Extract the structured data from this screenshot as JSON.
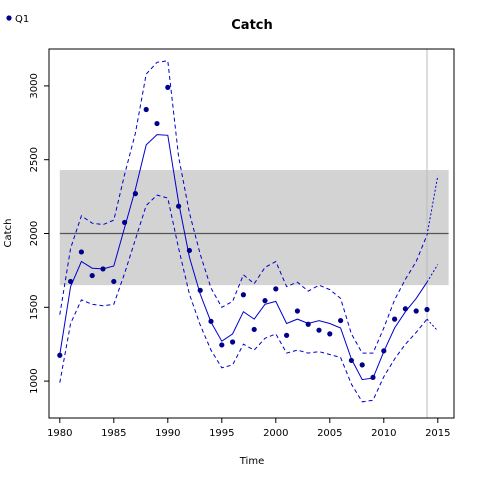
{
  "chart_data": {
    "type": "line",
    "title": "Catch",
    "xlabel": "Time",
    "ylabel": "Catch",
    "xlim": [
      1979,
      2016.5
    ],
    "ylim": [
      750,
      3250
    ],
    "xticks": [
      1980,
      1985,
      1990,
      1995,
      2000,
      2005,
      2010,
      2015
    ],
    "yticks": [
      1000,
      1500,
      2000,
      2500,
      3000
    ],
    "reference_band": {
      "y_min": 1650,
      "y_max": 2430,
      "x_min": 1980,
      "x_max": 2016,
      "color": "#d3d3d3"
    },
    "reference_line": {
      "y": 2000,
      "x_min": 1980,
      "x_max": 2016,
      "color": "#555555"
    },
    "vertical_line": {
      "x": 2014,
      "color": "#bbbbbb"
    },
    "legend": {
      "position": "top-left",
      "entries": [
        {
          "label": "Q1",
          "color": "#00008b"
        }
      ]
    },
    "series": [
      {
        "name": "Q1",
        "kind": "points",
        "color": "#00008b",
        "x": [
          1980,
          1981,
          1982,
          1983,
          1984,
          1985,
          1986,
          1987,
          1988,
          1989,
          1990,
          1991,
          1992,
          1993,
          1994,
          1995,
          1996,
          1997,
          1998,
          1999,
          2000,
          2001,
          2002,
          2003,
          2004,
          2005,
          2006,
          2007,
          2008,
          2009,
          2010,
          2011,
          2012,
          2013,
          2014
        ],
        "y": [
          1175,
          1675,
          1875,
          1715,
          1760,
          1675,
          2075,
          2270,
          2840,
          2745,
          2990,
          2185,
          1885,
          1615,
          1405,
          1245,
          1265,
          1585,
          1350,
          1545,
          1625,
          1310,
          1475,
          1385,
          1345,
          1320,
          1410,
          1140,
          1110,
          1025,
          1205,
          1420,
          1490,
          1475,
          1485
        ]
      },
      {
        "name": "",
        "kind": "fit",
        "color": "#0000cd",
        "x": [
          1980,
          1981,
          1982,
          1983,
          1984,
          1985,
          1986,
          1987,
          1988,
          1989,
          1990,
          1991,
          1992,
          1993,
          1994,
          1995,
          1996,
          1997,
          1998,
          1999,
          2000,
          2001,
          2002,
          2003,
          2004,
          2005,
          2006,
          2007,
          2008,
          2009,
          2010,
          2011,
          2012,
          2013,
          2014
        ],
        "y": [
          1180,
          1640,
          1810,
          1765,
          1760,
          1780,
          2040,
          2300,
          2600,
          2670,
          2665,
          2210,
          1840,
          1590,
          1400,
          1270,
          1320,
          1470,
          1420,
          1520,
          1540,
          1390,
          1420,
          1390,
          1410,
          1390,
          1360,
          1150,
          1010,
          1020,
          1200,
          1360,
          1470,
          1560,
          1670
        ]
      },
      {
        "name": "",
        "kind": "upper-bound",
        "color": "#0000cd",
        "x": [
          1980,
          1981,
          1982,
          1983,
          1984,
          1985,
          1986,
          1987,
          1988,
          1989,
          1990,
          1991,
          1992,
          1993,
          1994,
          1995,
          1996,
          1997,
          1998,
          1999,
          2000,
          2001,
          2002,
          2003,
          2004,
          2005,
          2006,
          2007,
          2008,
          2009,
          2010,
          2011,
          2012,
          2013,
          2014
        ],
        "y": [
          1450,
          1900,
          2120,
          2070,
          2060,
          2090,
          2400,
          2680,
          3080,
          3160,
          3170,
          2520,
          2140,
          1860,
          1630,
          1500,
          1540,
          1720,
          1660,
          1770,
          1810,
          1640,
          1670,
          1610,
          1650,
          1620,
          1560,
          1320,
          1190,
          1190,
          1360,
          1550,
          1690,
          1810,
          1990
        ]
      },
      {
        "name": "",
        "kind": "lower-bound",
        "color": "#0000cd",
        "x": [
          1980,
          1981,
          1982,
          1983,
          1984,
          1985,
          1986,
          1987,
          1988,
          1989,
          1990,
          1991,
          1992,
          1993,
          1994,
          1995,
          1996,
          1997,
          1998,
          1999,
          2000,
          2001,
          2002,
          2003,
          2004,
          2005,
          2006,
          2007,
          2008,
          2009,
          2010,
          2011,
          2012,
          2013,
          2014
        ],
        "y": [
          990,
          1390,
          1550,
          1520,
          1510,
          1520,
          1730,
          1960,
          2190,
          2260,
          2240,
          1900,
          1590,
          1380,
          1210,
          1090,
          1110,
          1250,
          1210,
          1290,
          1320,
          1190,
          1210,
          1190,
          1200,
          1180,
          1160,
          980,
          860,
          870,
          1030,
          1150,
          1250,
          1330,
          1420
        ]
      },
      {
        "name": "",
        "kind": "projection",
        "color": "#0000cd",
        "x": [
          2014,
          2015
        ],
        "y": [
          1670,
          1790
        ]
      },
      {
        "name": "",
        "kind": "projection-upper",
        "color": "#0000cd",
        "x": [
          2014,
          2015
        ],
        "y": [
          1990,
          2390
        ]
      },
      {
        "name": "",
        "kind": "projection-lower",
        "color": "#0000cd",
        "x": [
          2014,
          2015
        ],
        "y": [
          1420,
          1340
        ]
      }
    ]
  }
}
